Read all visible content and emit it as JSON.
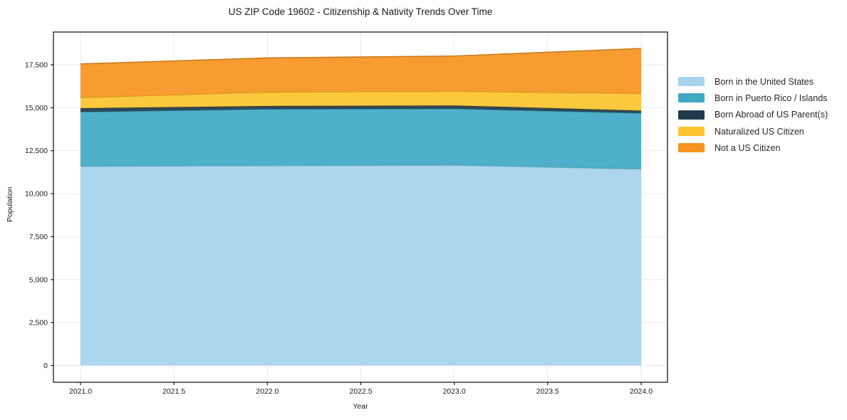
{
  "chart_data": {
    "type": "area",
    "stacked": true,
    "title": "US ZIP Code 19602 - Citizenship & Nativity Trends Over Time",
    "xlabel": "Year",
    "ylabel": "Population",
    "x": [
      2021,
      2022,
      2023,
      2024
    ],
    "x_tick_values": [
      2021.0,
      2021.5,
      2022.0,
      2022.5,
      2023.0,
      2023.5,
      2024.0
    ],
    "x_tick_labels": [
      "2021.0",
      "2021.5",
      "2022.0",
      "2022.5",
      "2023.0",
      "2023.5",
      "2024.0"
    ],
    "y_tick_values": [
      0,
      2500,
      5000,
      7500,
      10000,
      12500,
      15000,
      17500
    ],
    "y_tick_labels": [
      "0",
      "2,500",
      "5,000",
      "7,500",
      "10,000",
      "12,500",
      "15,000",
      "17,500"
    ],
    "xlim": [
      2020.85,
      2024.15
    ],
    "ylim": [
      -920,
      19380
    ],
    "grid": true,
    "legend_position": "right",
    "series": [
      {
        "name": "Born in the United States",
        "color": "#A5D3EC",
        "values": [
          11590,
          11630,
          11660,
          11430
        ]
      },
      {
        "name": "Born in Puerto Rico / Islands",
        "color": "#3FA9C5",
        "values": [
          3170,
          3290,
          3280,
          3260
        ]
      },
      {
        "name": "Born Abroad of US Parent(s)",
        "color": "#1F3B4D",
        "values": [
          210,
          180,
          190,
          140
        ]
      },
      {
        "name": "Naturalized US Citizen",
        "color": "#FCC42E",
        "values": [
          620,
          810,
          830,
          990
        ]
      },
      {
        "name": "Not a US Citizen",
        "color": "#F7941F",
        "values": [
          1960,
          1990,
          2050,
          2630
        ]
      }
    ],
    "totals": [
      17550,
      17900,
      18010,
      18450
    ]
  }
}
